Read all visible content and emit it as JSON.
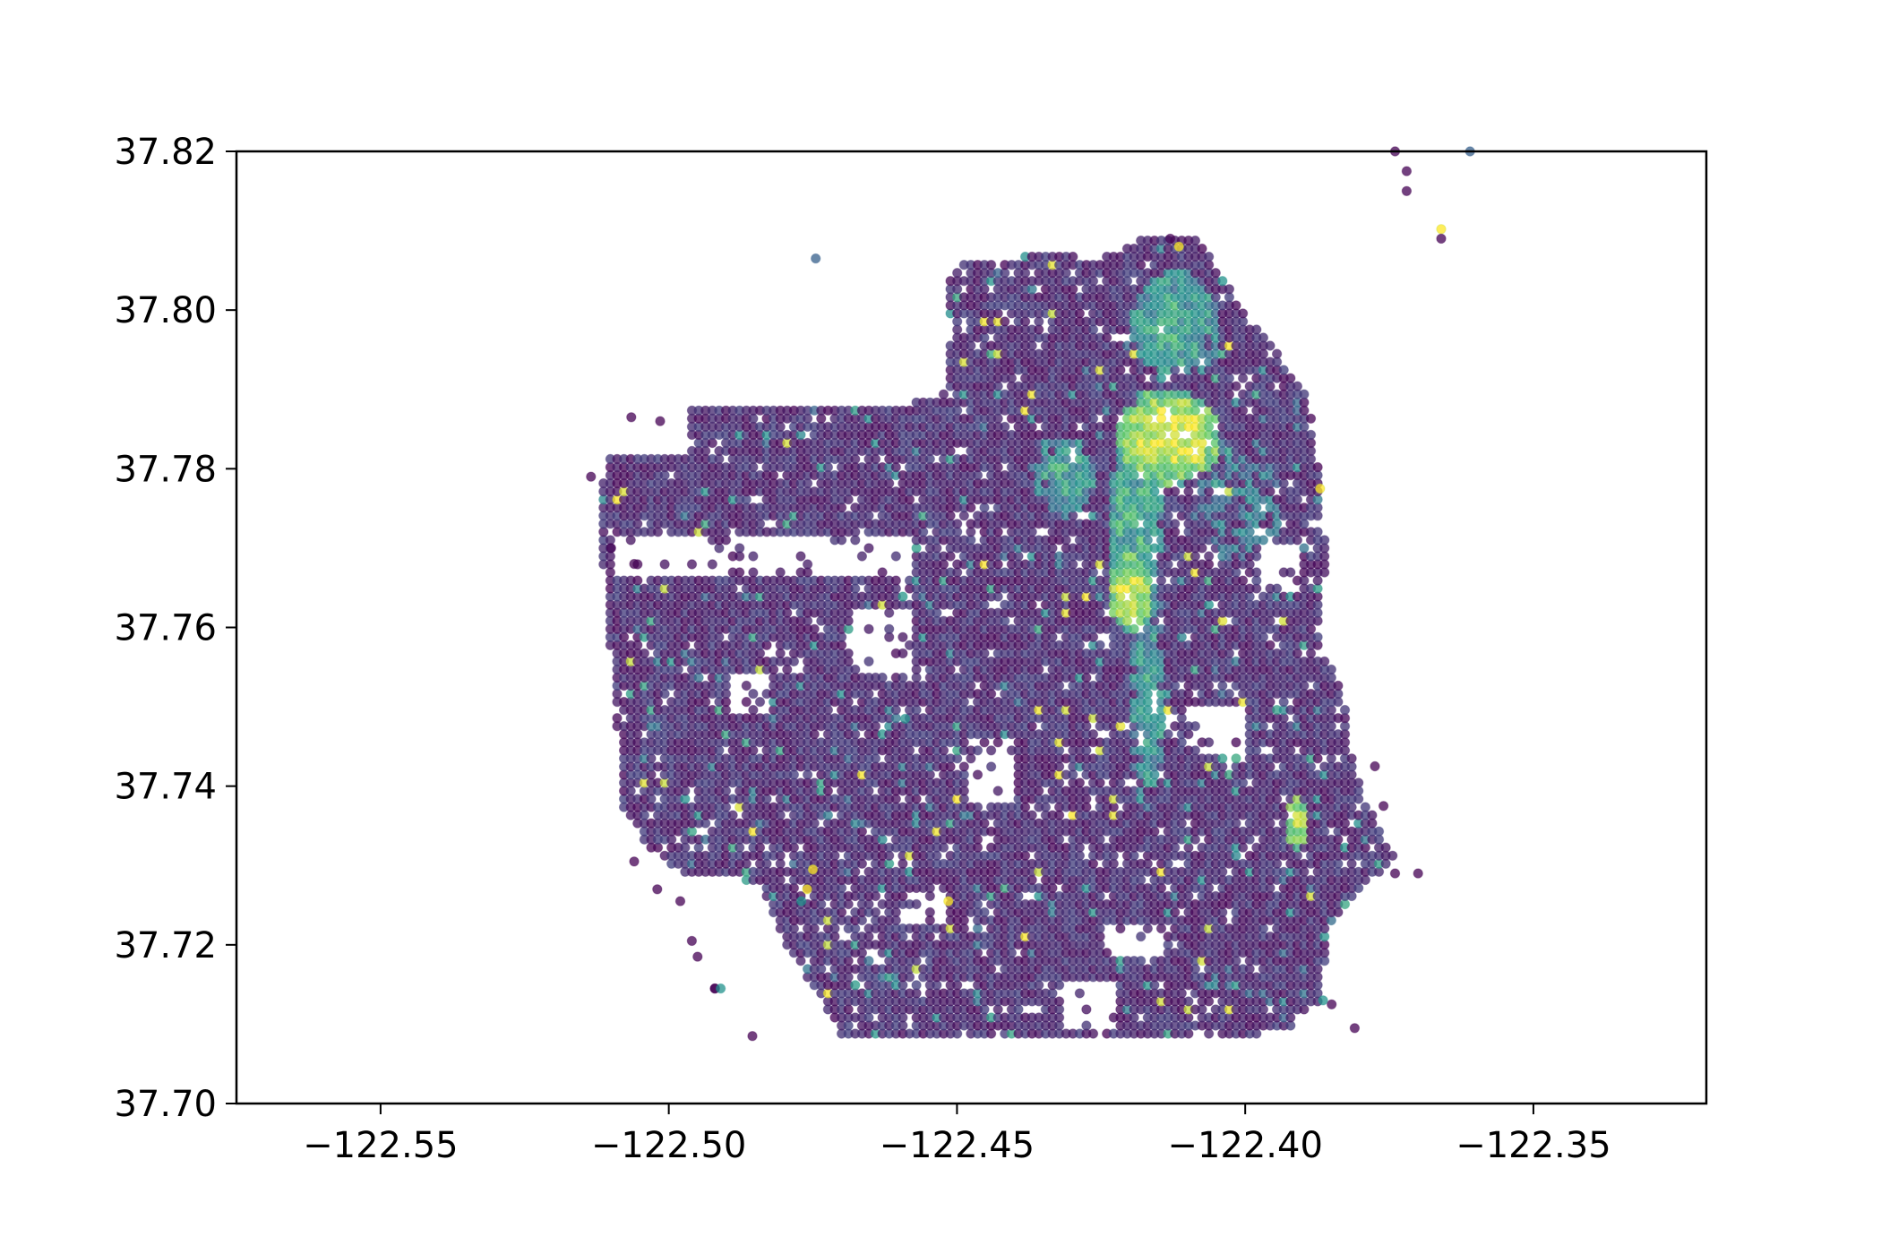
{
  "chart_data": {
    "type": "scatter",
    "title": "",
    "xlabel": "",
    "ylabel": "",
    "xlim": [
      -122.575,
      -122.32
    ],
    "ylim": [
      37.7,
      37.82
    ],
    "grid": false,
    "legend": "none",
    "colormap": "viridis",
    "x_ticks": [
      -122.55,
      -122.5,
      -122.45,
      -122.4,
      -122.35
    ],
    "x_tick_labels": [
      "−122.55",
      "−122.50",
      "−122.45",
      "−122.40",
      "−122.35"
    ],
    "y_ticks": [
      37.7,
      37.72,
      37.74,
      37.76,
      37.78,
      37.8,
      37.82
    ],
    "y_tick_labels": [
      "37.70",
      "37.72",
      "37.74",
      "37.76",
      "37.78",
      "37.80",
      "37.82"
    ],
    "colors": {
      "low": "#440154",
      "low_mid": "#3b528b",
      "mid": "#21918c",
      "high_mid": "#5ec962",
      "high": "#fde725"
    },
    "point_alpha": 0.75,
    "grid_step": {
      "x": 0.00118,
      "y": 0.00102
    },
    "region": {
      "polygon": [
        [
          -122.511,
          37.7815
        ],
        [
          -122.497,
          37.7815
        ],
        [
          -122.497,
          37.7875
        ],
        [
          -122.466,
          37.788
        ],
        [
          -122.46,
          37.788
        ],
        [
          -122.452,
          37.7895
        ],
        [
          -122.451,
          37.7985
        ],
        [
          -122.452,
          37.8055
        ],
        [
          -122.435,
          37.807
        ],
        [
          -122.425,
          37.8065
        ],
        [
          -122.418,
          37.809
        ],
        [
          -122.408,
          37.809
        ],
        [
          -122.403,
          37.803
        ],
        [
          -122.397,
          37.797
        ],
        [
          -122.389,
          37.789
        ],
        [
          -122.387,
          37.779
        ],
        [
          -122.386,
          37.769
        ],
        [
          -122.387,
          37.757
        ],
        [
          -122.383,
          37.753
        ],
        [
          -122.382,
          37.745
        ],
        [
          -122.379,
          37.738
        ],
        [
          -122.374,
          37.731
        ],
        [
          -122.377,
          37.729
        ],
        [
          -122.385,
          37.723
        ],
        [
          -122.387,
          37.713
        ],
        [
          -122.393,
          37.709
        ],
        [
          -122.405,
          37.7085
        ],
        [
          -122.465,
          37.7085
        ],
        [
          -122.47,
          37.7085
        ],
        [
          -122.474,
          37.714
        ],
        [
          -122.48,
          37.72
        ],
        [
          -122.483,
          37.726
        ],
        [
          -122.485,
          37.728
        ],
        [
          -122.498,
          37.729
        ],
        [
          -122.503,
          37.732
        ],
        [
          -122.508,
          37.737
        ],
        [
          -122.509,
          37.748
        ],
        [
          -122.51,
          37.756
        ],
        [
          -122.511,
          37.765
        ],
        [
          -122.512,
          37.773
        ],
        [
          -122.511,
          37.7815
        ]
      ],
      "gaps": [
        {
          "lon": [
            -122.51,
            -122.458
          ],
          "lat": [
            37.7665,
            37.7715
          ]
        },
        {
          "lon": [
            -122.468,
            -122.458
          ],
          "lat": [
            37.754,
            37.762
          ]
        },
        {
          "lon": [
            -122.448,
            -122.44
          ],
          "lat": [
            37.738,
            37.746
          ]
        },
        {
          "lon": [
            -122.41,
            -122.4
          ],
          "lat": [
            37.744,
            37.75
          ]
        },
        {
          "lon": [
            -122.432,
            -122.422
          ],
          "lat": [
            37.709,
            37.715
          ]
        },
        {
          "lon": [
            -122.424,
            -122.414
          ],
          "lat": [
            37.718,
            37.723
          ]
        },
        {
          "lon": [
            -122.397,
            -122.39
          ],
          "lat": [
            37.764,
            37.77
          ]
        },
        {
          "lon": [
            -122.489,
            -122.482
          ],
          "lat": [
            37.749,
            37.754
          ]
        },
        {
          "lon": [
            -122.459,
            -122.452
          ],
          "lat": [
            37.723,
            37.727
          ]
        }
      ]
    },
    "hotspots": [
      {
        "lon": -122.413,
        "lat": 37.784,
        "rx": 0.009,
        "ry": 0.006,
        "value": 1.0
      },
      {
        "lon": -122.42,
        "lat": 37.7645,
        "rx": 0.004,
        "ry": 0.005,
        "value": 0.95
      },
      {
        "lon": -122.391,
        "lat": 37.7355,
        "rx": 0.002,
        "ry": 0.0035,
        "value": 0.9
      },
      {
        "lon": -122.412,
        "lat": 37.798,
        "rx": 0.008,
        "ry": 0.007,
        "value": 0.55
      },
      {
        "lon": -122.419,
        "lat": 37.774,
        "rx": 0.005,
        "ry": 0.01,
        "value": 0.6
      },
      {
        "lon": -122.417,
        "lat": 37.752,
        "rx": 0.003,
        "ry": 0.015,
        "value": 0.5
      },
      {
        "lon": -122.431,
        "lat": 37.779,
        "rx": 0.005,
        "ry": 0.005,
        "value": 0.55
      },
      {
        "lon": -122.401,
        "lat": 37.776,
        "rx": 0.008,
        "ry": 0.008,
        "value": 0.35
      }
    ],
    "outliers": [
      {
        "x": -122.5135,
        "y": 37.779,
        "v": 0.0
      },
      {
        "x": -122.5065,
        "y": 37.7865,
        "v": 0.0
      },
      {
        "x": -122.5015,
        "y": 37.786,
        "v": 0.0
      },
      {
        "x": -122.51,
        "y": 37.77,
        "v": 0.0
      },
      {
        "x": -122.506,
        "y": 37.768,
        "v": 0.0
      },
      {
        "x": -122.4745,
        "y": 37.8065,
        "v": 0.3
      },
      {
        "x": -122.374,
        "y": 37.82,
        "v": 0.0
      },
      {
        "x": -122.372,
        "y": 37.8175,
        "v": 0.0
      },
      {
        "x": -122.372,
        "y": 37.815,
        "v": 0.0
      },
      {
        "x": -122.366,
        "y": 37.8102,
        "v": 1.0
      },
      {
        "x": -122.366,
        "y": 37.809,
        "v": 0.0
      },
      {
        "x": -122.361,
        "y": 37.82,
        "v": 0.3
      },
      {
        "x": -122.492,
        "y": 37.7145,
        "v": 0.0
      },
      {
        "x": -122.492,
        "y": 37.7145,
        "v": 0.0
      },
      {
        "x": -122.491,
        "y": 37.7145,
        "v": 0.5
      },
      {
        "x": -122.4855,
        "y": 37.7085,
        "v": 0.0
      },
      {
        "x": -122.496,
        "y": 37.7205,
        "v": 0.0
      },
      {
        "x": -122.495,
        "y": 37.7185,
        "v": 0.0
      },
      {
        "x": -122.498,
        "y": 37.7255,
        "v": 0.0
      },
      {
        "x": -122.502,
        "y": 37.727,
        "v": 0.0
      },
      {
        "x": -122.506,
        "y": 37.7305,
        "v": 0.0
      },
      {
        "x": -122.477,
        "y": 37.7255,
        "v": 0.5
      },
      {
        "x": -122.476,
        "y": 37.727,
        "v": 1.0
      },
      {
        "x": -122.475,
        "y": 37.7295,
        "v": 1.0
      },
      {
        "x": -122.4515,
        "y": 37.7255,
        "v": 1.0
      },
      {
        "x": -122.459,
        "y": 37.7485,
        "v": 0.5
      },
      {
        "x": -122.381,
        "y": 37.7095,
        "v": 0.0
      },
      {
        "x": -122.385,
        "y": 37.7125,
        "v": 0.0
      },
      {
        "x": -122.3865,
        "y": 37.713,
        "v": 0.5
      },
      {
        "x": -122.376,
        "y": 37.7375,
        "v": 0.0
      },
      {
        "x": -122.3775,
        "y": 37.7425,
        "v": 0.0
      },
      {
        "x": -122.374,
        "y": 37.729,
        "v": 0.0
      },
      {
        "x": -122.37,
        "y": 37.729,
        "v": 0.0
      },
      {
        "x": -122.387,
        "y": 37.7775,
        "v": 1.0
      },
      {
        "x": -122.413,
        "y": 37.809,
        "v": 0.0
      },
      {
        "x": -122.4115,
        "y": 37.808,
        "v": 1.0
      }
    ]
  }
}
